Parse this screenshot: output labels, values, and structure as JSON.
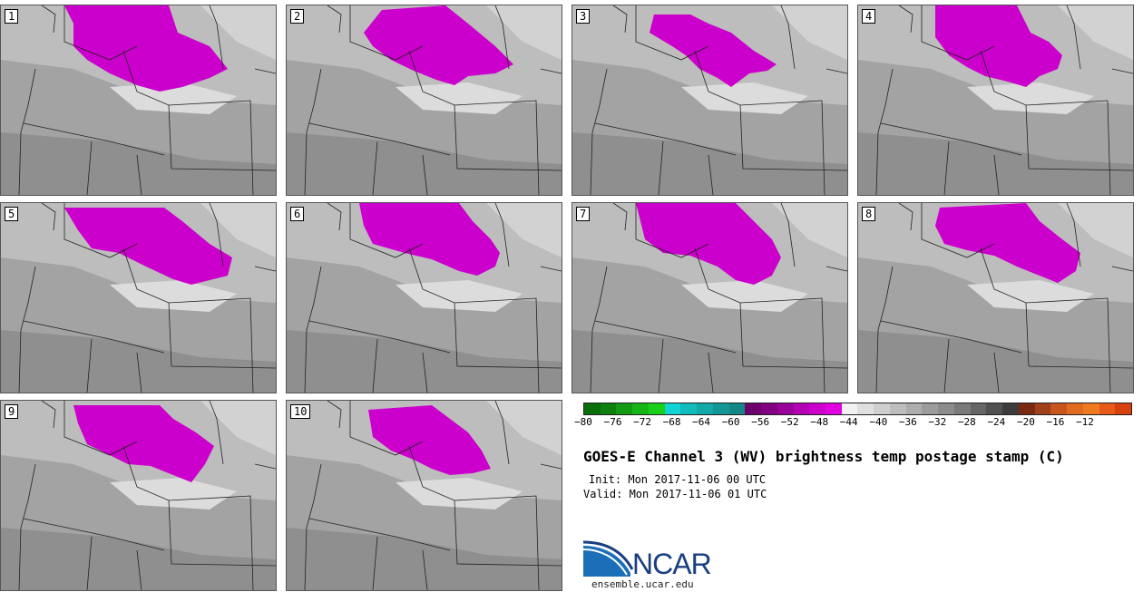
{
  "panels": [
    {
      "label": "1"
    },
    {
      "label": "2"
    },
    {
      "label": "3"
    },
    {
      "label": "4"
    },
    {
      "label": "5"
    },
    {
      "label": "6"
    },
    {
      "label": "7"
    },
    {
      "label": "8"
    },
    {
      "label": "9"
    },
    {
      "label": "10"
    }
  ],
  "colorbar": {
    "colors": [
      "#0a6e0a",
      "#0e800e",
      "#139a13",
      "#16b516",
      "#19cf19",
      "#10d4d4",
      "#10bcbc",
      "#12a8a8",
      "#139696",
      "#148686",
      "#6d006d",
      "#800080",
      "#990099",
      "#b300b3",
      "#cc00cc",
      "#e000e0",
      "#f2f2f2",
      "#e0e0e0",
      "#cfcfcf",
      "#bdbdbd",
      "#adadad",
      "#9c9c9c",
      "#8c8c8c",
      "#7a7a7a",
      "#666666",
      "#505050",
      "#3c3c3c",
      "#7a2a12",
      "#a0401a",
      "#c8561c",
      "#e06a1e",
      "#f07a20",
      "#e85a18",
      "#d8400e"
    ],
    "ticks": [
      "−80",
      "−76",
      "−72",
      "−68",
      "−64",
      "−60",
      "−56",
      "−52",
      "−48",
      "−44",
      "−40",
      "−36",
      "−32",
      "−28",
      "−24",
      "−20",
      "−16",
      "−12"
    ]
  },
  "title": "GOES-E Channel 3 (WV) brightness temp postage stamp (C)",
  "init": "Init: Mon 2017-11-06 00 UTC",
  "valid": "Valid: Mon 2017-11-06 01 UTC",
  "logo": {
    "name": "NCAR",
    "website": "ensemble.ucar.edu"
  }
}
